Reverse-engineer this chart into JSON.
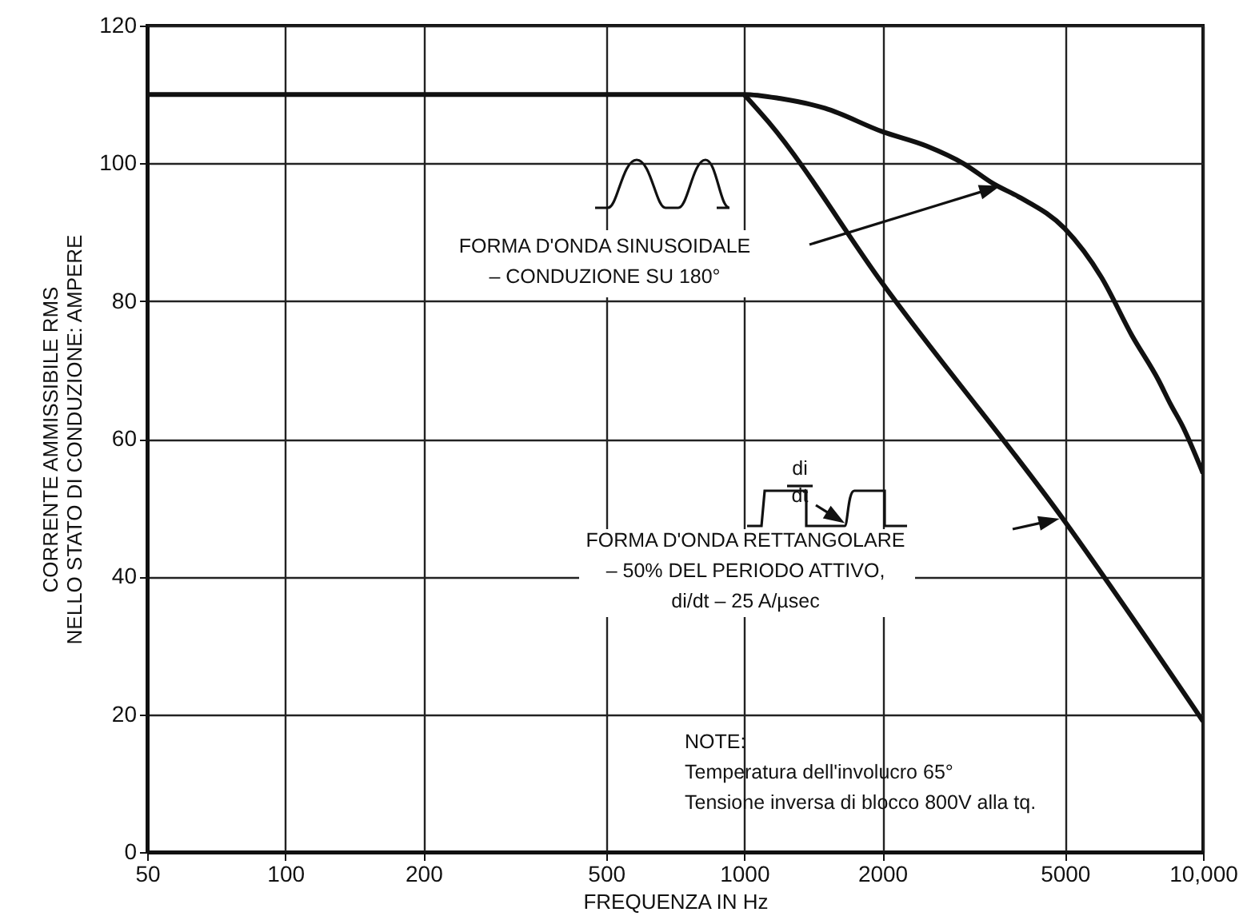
{
  "chart_data": {
    "type": "line",
    "xlabel": "FREQUENZA IN Hz",
    "ylabel": "CORRENTE AMMISSIBILE RMS\nNELLO STATO DI CONDUZIONE: AMPERE",
    "log": "x",
    "grid": true,
    "marker": "none",
    "line_style": "solid",
    "xlim": [
      50,
      10000
    ],
    "xticks": [
      50,
      100,
      200,
      500,
      {
        "value": 1000,
        "label": "1000"
      },
      {
        "value": 2000,
        "label": "2000"
      },
      {
        "value": 5000,
        "label": "5000"
      },
      {
        "value": 10000,
        "label": "10,000"
      }
    ],
    "ylim": [
      0,
      120
    ],
    "yticks": [
      0,
      20,
      40,
      60,
      80,
      100,
      120
    ],
    "series": [
      {
        "color": "#111111",
        "x": [
          50,
          1000,
          1200,
          1500,
          2000,
          2500,
          3000,
          3500,
          4000,
          5000,
          6000,
          7000,
          8000,
          8500,
          9000,
          10000
        ],
        "values": [
          110,
          110,
          109.4,
          108,
          104.6,
          102.5,
          100,
          97,
          95,
          90.5,
          83.5,
          75,
          68.5,
          65,
          62,
          55
        ]
      },
      {
        "color": "#111111",
        "x": [
          1000,
          1130,
          2000,
          5000,
          10000
        ],
        "values": [
          110,
          106,
          82.6,
          48,
          19
        ]
      }
    ],
    "annotations": [
      "FORMA D'ONDA SINUSOIDALE\n– CONDUZIONE SU 180°",
      "FORMA D'ONDA RETTANGOLARE\n– 50% DEL PERIODO ATTIVO,\ndi/dt – 25 A/µsec",
      "di\ndt",
      "NOTE:\nTemperatura dell'involucro 65°\nTensione inversa di blocco 800V alla tq."
    ]
  }
}
